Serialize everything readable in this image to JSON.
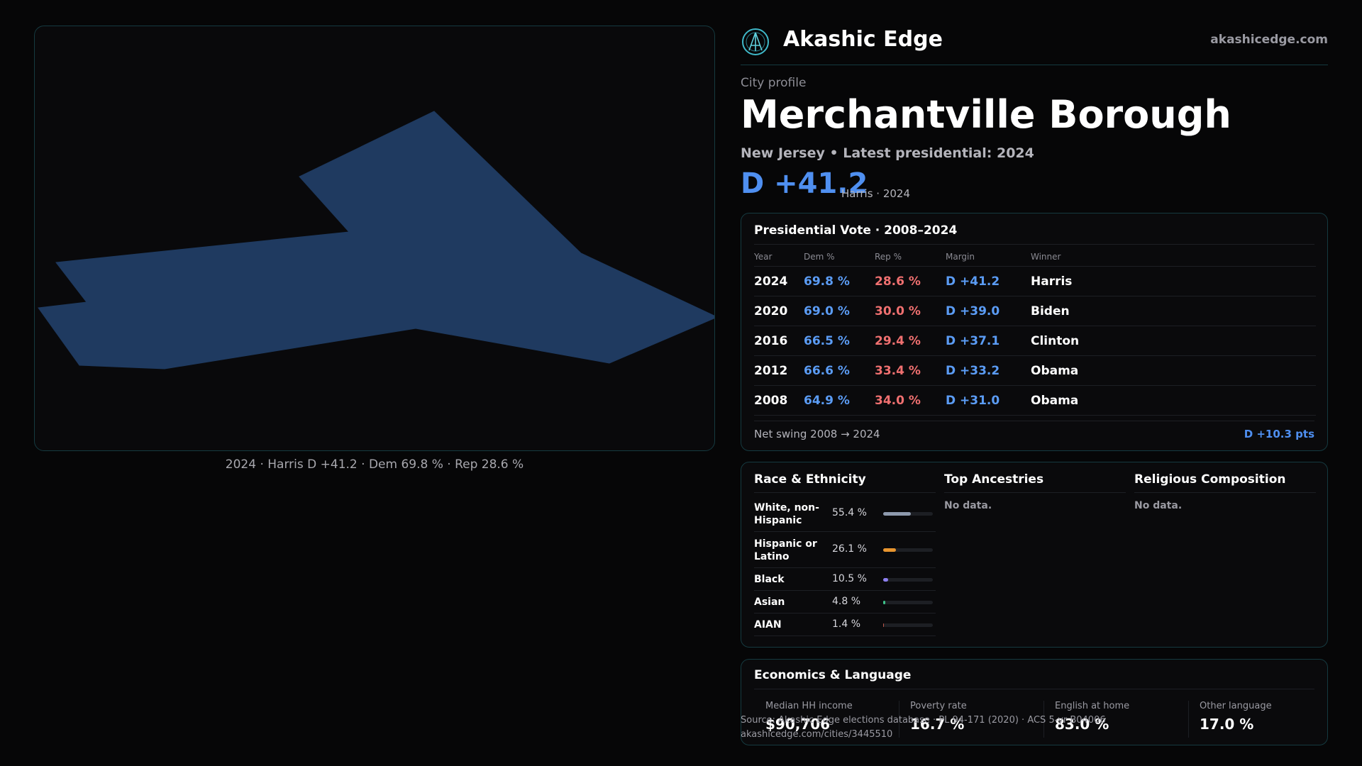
{
  "map": {
    "caption": "2024 · Harris D +41.2 · Dem 69.8 % · Rep 28.6 %",
    "fill_color": "#1f3a60"
  },
  "brand": {
    "name": "Akashic Edge",
    "url": "akashicedge.com",
    "logo_icon": "akashic-edge-logo-icon"
  },
  "profile": {
    "kicker": "City profile",
    "city": "Merchantville Borough",
    "subline": "New Jersey • Latest presidential: 2024",
    "margin": "D +41.2",
    "margin_note": "Harris · 2024"
  },
  "vote": {
    "title": "Presidential Vote · 2008–2024",
    "headers": {
      "year": "Year",
      "dem": "Dem %",
      "rep": "Rep %",
      "margin": "Margin",
      "winner": "Winner"
    },
    "rows": [
      {
        "year": "2024",
        "dem": "69.8 %",
        "rep": "28.6 %",
        "margin": "D +41.2",
        "winner": "Harris"
      },
      {
        "year": "2020",
        "dem": "69.0 %",
        "rep": "30.0 %",
        "margin": "D +39.0",
        "winner": "Biden"
      },
      {
        "year": "2016",
        "dem": "66.5 %",
        "rep": "29.4 %",
        "margin": "D +37.1",
        "winner": "Clinton"
      },
      {
        "year": "2012",
        "dem": "66.6 %",
        "rep": "33.4 %",
        "margin": "D +33.2",
        "winner": "Obama"
      },
      {
        "year": "2008",
        "dem": "64.9 %",
        "rep": "34.0 %",
        "margin": "D +31.0",
        "winner": "Obama"
      }
    ],
    "swing_label": "Net swing 2008 → 2024",
    "swing_value": "D +10.3 pts"
  },
  "race": {
    "title": "Race & Ethnicity",
    "items": [
      {
        "label": "White, non-Hispanic",
        "pct": "55.4 %",
        "value": 55.4,
        "color": "#8e9aae"
      },
      {
        "label": "Hispanic or Latino",
        "pct": "26.1 %",
        "value": 26.1,
        "color": "#e8952f"
      },
      {
        "label": "Black",
        "pct": "10.5 %",
        "value": 10.5,
        "color": "#8d7ff0"
      },
      {
        "label": "Asian",
        "pct": "4.8 %",
        "value": 4.8,
        "color": "#3ec28a"
      },
      {
        "label": "AIAN",
        "pct": "1.4 %",
        "value": 1.4,
        "color": "#c0584a"
      }
    ]
  },
  "ancestries": {
    "title": "Top Ancestries",
    "empty": "No data."
  },
  "religion": {
    "title": "Religious Composition",
    "empty": "No data."
  },
  "econ": {
    "title": "Economics & Language",
    "stats": [
      {
        "label": "Median HH income",
        "value": "$90,706"
      },
      {
        "label": "Poverty rate",
        "value": "16.7 %"
      },
      {
        "label": "English at home",
        "value": "83.0 %"
      },
      {
        "label": "Other language",
        "value": "17.0 %"
      }
    ]
  },
  "footer": {
    "source": "Source: Akashic Edge elections database · PL 94-171 (2020) · ACS 5-yr B04006",
    "link": "akashicedge.com/cities/3445510"
  }
}
